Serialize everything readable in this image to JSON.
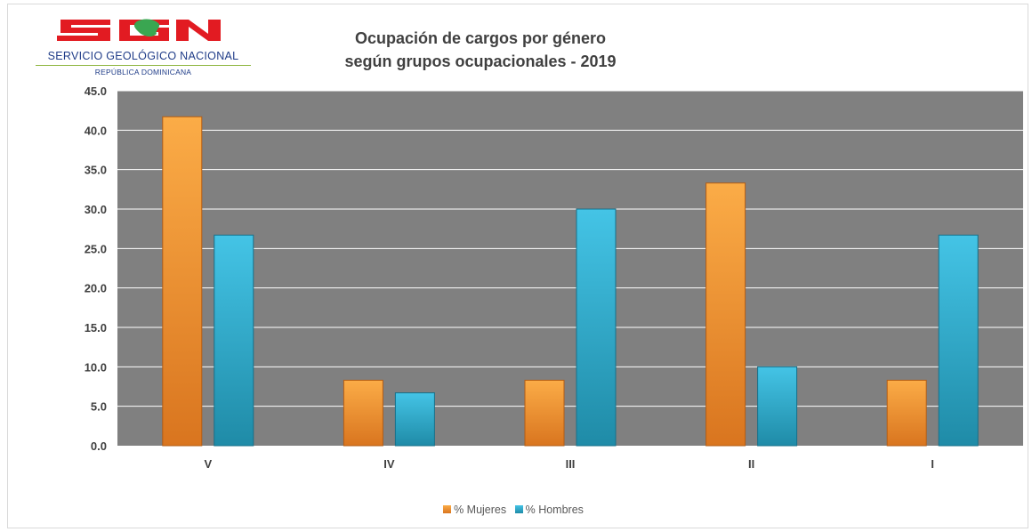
{
  "logo": {
    "mark": "SGN",
    "name": "SERVICIO GEOLÓGICO NACIONAL",
    "subtitle": "REPÚBLICA DOMINICANA"
  },
  "colors": {
    "plot_background": "#808080",
    "gridline": "#ffffff",
    "logo_red": "#e21b22",
    "logo_green": "#3aa651",
    "mujeres_light": "#fbac47",
    "mujeres_dark": "#d9751f",
    "hombres_light": "#44c4e6",
    "hombres_dark": "#1f8ba7"
  },
  "chart_data": {
    "type": "bar",
    "title_lines": [
      "Ocupación  de cargos por género",
      "según grupos ocupacionales  - 2019"
    ],
    "categories": [
      "V",
      "IV",
      "III",
      "II",
      "I"
    ],
    "series": [
      {
        "name": "% Mujeres",
        "color": "#f7941d",
        "values": [
          41.7,
          8.3,
          8.3,
          33.3,
          8.3
        ]
      },
      {
        "name": "% Hombres",
        "color": "#2eb4d6",
        "values": [
          26.7,
          6.7,
          30.0,
          10.0,
          26.7
        ]
      }
    ],
    "yticks": [
      "0.0",
      "5.0",
      "10.0",
      "15.0",
      "20.0",
      "25.0",
      "30.0",
      "35.0",
      "40.0",
      "45.0"
    ],
    "ylim": [
      0,
      45
    ],
    "grid": true,
    "legend": "bottom",
    "xlabel": "",
    "ylabel": ""
  }
}
